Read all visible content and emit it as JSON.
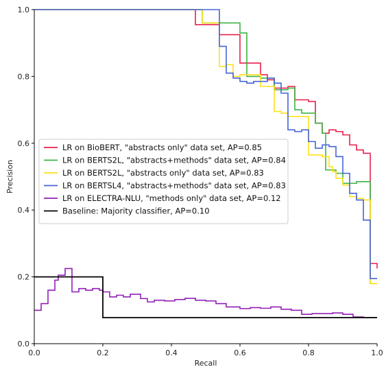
{
  "chart_data": {
    "type": "line",
    "step": true,
    "xlabel": "Recall",
    "ylabel": "Precision",
    "xlim": [
      0.0,
      1.0
    ],
    "ylim": [
      0.0,
      1.0
    ],
    "xticks": [
      "0.0",
      "0.2",
      "0.4",
      "0.6",
      "0.8",
      "1.0"
    ],
    "yticks": [
      "0.0",
      "0.2",
      "0.4",
      "0.6",
      "0.8",
      "1.0"
    ],
    "legend_position": "center-left",
    "grid": false,
    "series": [
      {
        "name": "LR on BioBERT, \"abstracts only\" data set, AP=0.85",
        "color": "#e8204e",
        "x": [
          0.0,
          0.47,
          0.49,
          0.51,
          0.54,
          0.58,
          0.6,
          0.64,
          0.66,
          0.68,
          0.7,
          0.72,
          0.74,
          0.76,
          0.78,
          0.8,
          0.82,
          0.84,
          0.86,
          0.88,
          0.9,
          0.92,
          0.94,
          0.96,
          0.98,
          1.0
        ],
        "y": [
          1.0,
          0.955,
          0.955,
          0.955,
          0.925,
          0.925,
          0.84,
          0.84,
          0.805,
          0.79,
          0.765,
          0.765,
          0.77,
          0.73,
          0.73,
          0.725,
          0.66,
          0.63,
          0.64,
          0.635,
          0.625,
          0.595,
          0.58,
          0.57,
          0.24,
          0.225
        ]
      },
      {
        "name": "LR on BERTS2L, \"abstracts+methods\" data set, AP=0.84",
        "color": "#3cb445",
        "x": [
          0.0,
          0.49,
          0.51,
          0.54,
          0.58,
          0.6,
          0.62,
          0.64,
          0.66,
          0.7,
          0.74,
          0.76,
          0.78,
          0.8,
          0.82,
          0.84,
          0.85,
          0.88,
          0.9,
          0.94,
          0.98,
          1.0
        ],
        "y": [
          1.0,
          0.96,
          0.96,
          0.96,
          0.96,
          0.93,
          0.8,
          0.8,
          0.795,
          0.76,
          0.765,
          0.7,
          0.69,
          0.69,
          0.66,
          0.63,
          0.52,
          0.51,
          0.48,
          0.485,
          0.18,
          0.18
        ]
      },
      {
        "name": "LR on BERTS2L, \"abstracts only\" data set, AP=0.83",
        "color": "#ffe119",
        "x": [
          0.0,
          0.49,
          0.51,
          0.54,
          0.56,
          0.58,
          0.6,
          0.64,
          0.66,
          0.7,
          0.72,
          0.74,
          0.76,
          0.8,
          0.84,
          0.86,
          0.87,
          0.88,
          0.9,
          0.92,
          0.94,
          0.96,
          0.98,
          1.0
        ],
        "y": [
          1.0,
          0.96,
          0.96,
          0.83,
          0.835,
          0.8,
          0.805,
          0.805,
          0.77,
          0.695,
          0.69,
          0.68,
          0.68,
          0.565,
          0.56,
          0.53,
          0.515,
          0.495,
          0.475,
          0.44,
          0.435,
          0.43,
          0.18,
          0.18
        ]
      },
      {
        "name": "LR on BERTSL4, \"abstracts+methods\"  data set, AP=0.83",
        "color": "#4363d8",
        "x": [
          0.0,
          0.54,
          0.56,
          0.58,
          0.6,
          0.62,
          0.64,
          0.66,
          0.68,
          0.7,
          0.72,
          0.74,
          0.76,
          0.78,
          0.8,
          0.82,
          0.84,
          0.86,
          0.88,
          0.9,
          0.92,
          0.94,
          0.96,
          0.98,
          1.0
        ],
        "y": [
          1.0,
          0.89,
          0.81,
          0.795,
          0.785,
          0.78,
          0.785,
          0.785,
          0.795,
          0.78,
          0.75,
          0.64,
          0.635,
          0.64,
          0.605,
          0.585,
          0.595,
          0.59,
          0.56,
          0.51,
          0.45,
          0.43,
          0.37,
          0.195,
          0.195
        ]
      },
      {
        "name": "LR on ELECTRA-NLU, \"methods only\"  data set, AP=0.12",
        "color": "#911eb4",
        "x": [
          0.0,
          0.02,
          0.04,
          0.06,
          0.07,
          0.09,
          0.11,
          0.13,
          0.15,
          0.17,
          0.19,
          0.2,
          0.22,
          0.24,
          0.26,
          0.28,
          0.31,
          0.33,
          0.35,
          0.38,
          0.41,
          0.44,
          0.47,
          0.5,
          0.53,
          0.56,
          0.6,
          0.63,
          0.66,
          0.69,
          0.72,
          0.75,
          0.78,
          0.81,
          0.84,
          0.87,
          0.9,
          0.93,
          0.96,
          1.0
        ],
        "y": [
          0.1,
          0.12,
          0.16,
          0.19,
          0.205,
          0.225,
          0.155,
          0.165,
          0.16,
          0.165,
          0.16,
          0.155,
          0.14,
          0.145,
          0.14,
          0.148,
          0.135,
          0.125,
          0.13,
          0.128,
          0.132,
          0.136,
          0.13,
          0.128,
          0.12,
          0.11,
          0.105,
          0.108,
          0.106,
          0.11,
          0.103,
          0.1,
          0.088,
          0.09,
          0.09,
          0.092,
          0.088,
          0.08,
          0.078,
          0.078
        ]
      },
      {
        "name": "Baseline: Majority classifier, AP=0.10",
        "color": "#000000",
        "x": [
          0.0,
          0.2,
          1.0
        ],
        "y": [
          0.2,
          0.078,
          0.078
        ]
      }
    ]
  }
}
